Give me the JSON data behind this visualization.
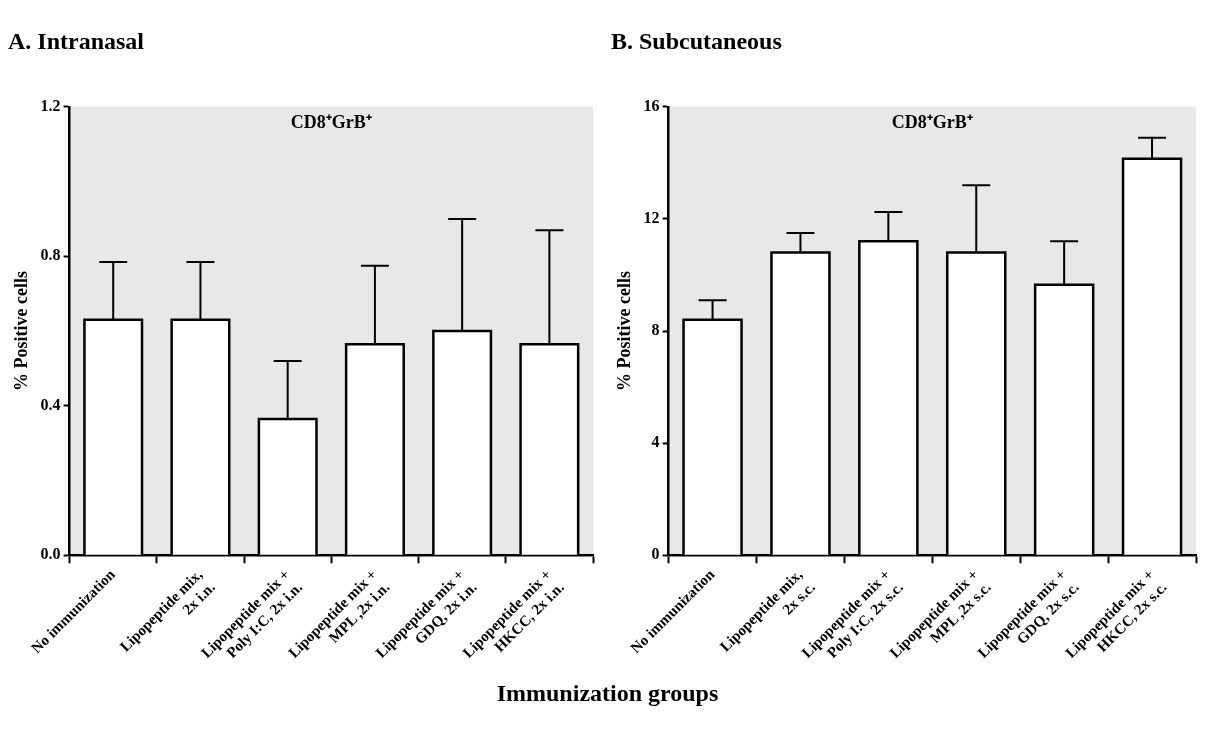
{
  "chart_data": [
    {
      "type": "bar",
      "title": "A. Intranasal",
      "subtitle": "CD8⁺GrB⁺",
      "ylabel": "% Positive cells",
      "xlabel": "Immunization groups",
      "categories": [
        "No immunization",
        "Lipopeptide mix,\n2x i.n.",
        "Lipopeptide mix +\nPoly I:C, 2x i.n.",
        "Lipopeptide mix +\nMPL ,2x i.n.",
        "Lipopeptide mix +\nGDQ, 2x i.n.",
        "Lipopeptide mix +\nHKCC, 2x i.n."
      ],
      "values": [
        0.63,
        0.63,
        0.365,
        0.565,
        0.6,
        0.565
      ],
      "errors": [
        [
          0.63,
          0.785
        ],
        [
          0.63,
          0.785
        ],
        [
          0.365,
          0.52
        ],
        [
          0.565,
          0.775
        ],
        [
          0.6,
          0.9
        ],
        [
          0.565,
          0.87
        ]
      ],
      "color": "#ffffff",
      "ylim": [
        0,
        1.2
      ],
      "yticks": [
        {
          "value": 0,
          "label": "0.0"
        },
        {
          "value": 0.4,
          "label": "0.4"
        },
        {
          "value": 0.8,
          "label": "0.8"
        },
        {
          "value": 1.2,
          "label": "1.2"
        }
      ],
      "grid": false,
      "legend": false
    },
    {
      "type": "bar",
      "title": "B. Subcutaneous",
      "subtitle": "CD8⁺GrB⁺",
      "ylabel": "% Positive cells",
      "categories": [
        "No immunization",
        "Lipopeptide mix,\n2x s.c.",
        "Lipopeptide mix +\nPoly I:C, 2x s.c.",
        "Lipopeptide mix +\nMPL ,2x s.c.",
        "Lipopeptide mix +\nGDQ, 2x s.c.",
        "Lipopeptide mix +\nHKCC, 2x s.c."
      ],
      "values": [
        8.4,
        10.8,
        11.2,
        10.8,
        9.65,
        14.15
      ],
      "errors": [
        [
          8.4,
          9.1
        ],
        [
          10.8,
          11.5
        ],
        [
          11.2,
          12.25
        ],
        [
          10.8,
          13.2
        ],
        [
          9.65,
          11.2
        ],
        [
          14.15,
          14.9
        ]
      ],
      "color": "#ffffff",
      "ylim": [
        0,
        16
      ],
      "yticks": [
        0,
        4,
        8,
        12,
        16
      ],
      "grid": false,
      "legend": false
    }
  ]
}
